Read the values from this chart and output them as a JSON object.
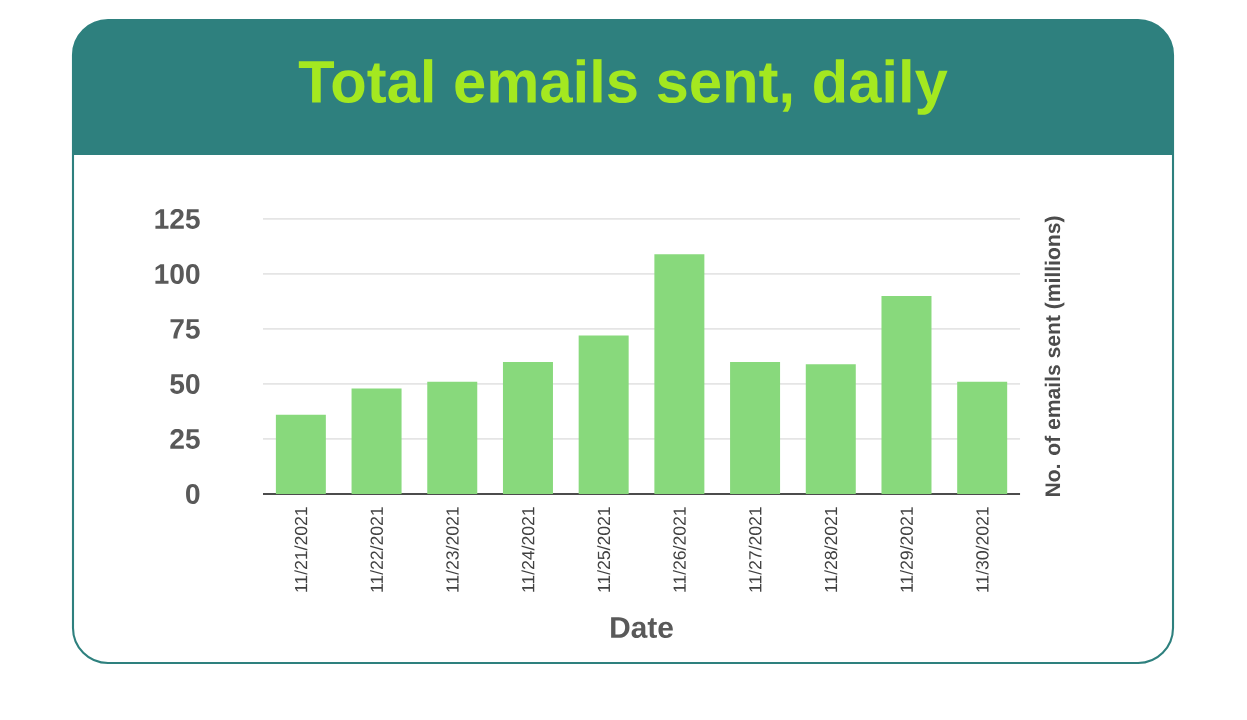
{
  "chart_data": {
    "type": "bar",
    "title": "Total emails sent, daily",
    "xlabel": "Date",
    "ylabel": "No. of emails sent (millions)",
    "categories": [
      "11/21/2021",
      "11/22/2021",
      "11/23/2021",
      "11/24/2021",
      "11/25/2021",
      "11/26/2021",
      "11/27/2021",
      "11/28/2021",
      "11/29/2021",
      "11/30/2021"
    ],
    "values": [
      36,
      48,
      51,
      60,
      72,
      109,
      60,
      59,
      90,
      51
    ],
    "color": "#88d97c",
    "ylim": [
      0,
      125
    ],
    "yticks": [
      0,
      25,
      50,
      75,
      100,
      125
    ],
    "grid": "y"
  }
}
